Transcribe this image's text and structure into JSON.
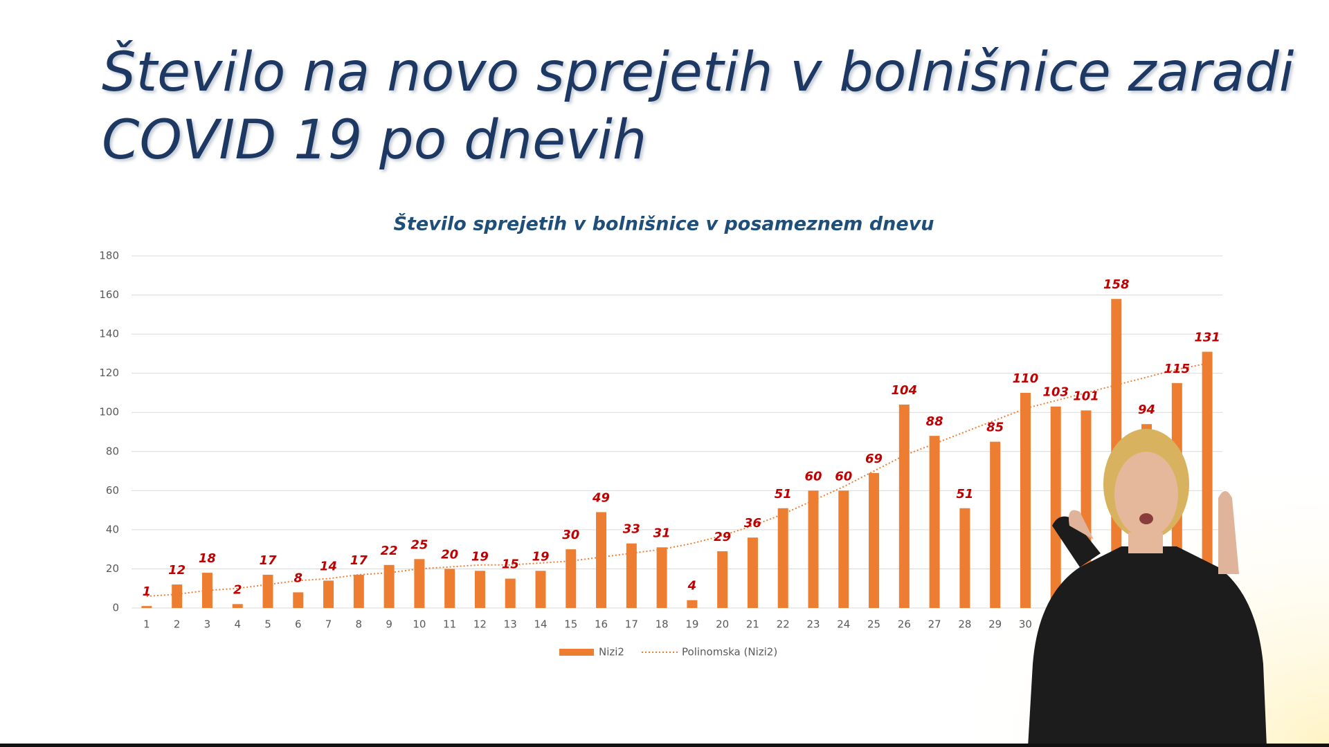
{
  "chart_data": {
    "type": "bar",
    "slide_title": "Število na novo sprejetih v bolnišnice zaradi COVID 19 po dnevih",
    "title": "Število sprejetih v bolnišnice v posameznem dnevu",
    "categories": [
      "1",
      "2",
      "3",
      "4",
      "5",
      "6",
      "7",
      "8",
      "9",
      "10",
      "11",
      "12",
      "13",
      "14",
      "15",
      "16",
      "17",
      "18",
      "19",
      "20",
      "21",
      "22",
      "23",
      "24",
      "25",
      "26",
      "27",
      "28",
      "29",
      "30",
      null,
      null,
      null,
      null,
      null,
      null
    ],
    "series": [
      {
        "name": "Nizi2",
        "color": "#ed7d31",
        "values": [
          1,
          12,
          18,
          2,
          17,
          8,
          14,
          17,
          22,
          25,
          20,
          19,
          15,
          19,
          30,
          49,
          33,
          31,
          4,
          29,
          36,
          51,
          60,
          60,
          69,
          104,
          88,
          51,
          85,
          110,
          103,
          101,
          158,
          94,
          115,
          131
        ]
      },
      {
        "name": "Polinomska (Nizi2)",
        "color": "#ed7d31",
        "line_style": "dotted",
        "values": [
          6,
          7,
          9,
          10,
          12,
          14,
          15,
          17,
          18,
          20,
          21,
          22,
          22,
          23,
          24,
          26,
          28,
          30,
          33,
          37,
          42,
          48,
          55,
          62,
          70,
          78,
          84,
          90,
          96,
          102,
          106,
          110,
          114,
          118,
          122,
          125
        ]
      }
    ],
    "ylim": [
      0,
      180
    ],
    "yticks": [
      0,
      20,
      40,
      60,
      80,
      100,
      120,
      140,
      160,
      180
    ],
    "grid": true,
    "legend": "bottom"
  }
}
